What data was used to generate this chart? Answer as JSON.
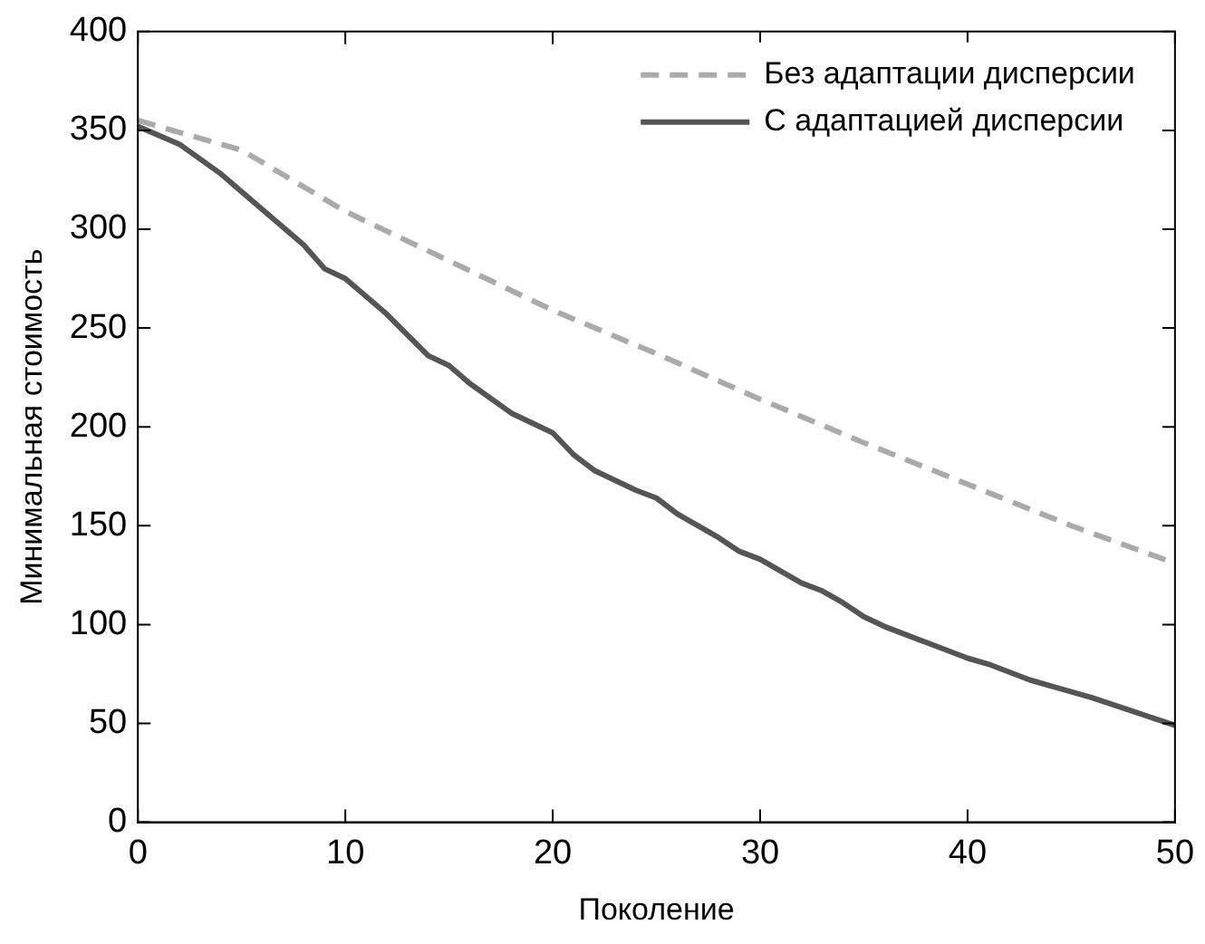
{
  "chart_data": {
    "type": "line",
    "xlabel": "Поколение",
    "ylabel": "Минимальная стоимость",
    "xlim": [
      0,
      50
    ],
    "xticks": [
      0,
      10,
      20,
      30,
      40,
      50
    ],
    "ylim": [
      0,
      400
    ],
    "yticks": [
      0,
      50,
      100,
      150,
      200,
      250,
      300,
      350,
      400
    ],
    "grid": false,
    "legend": "top right",
    "marker": "none",
    "series": [
      {
        "name": "Без адаптации дисперсии",
        "color": "#aaaaaa",
        "line_style": "dashed",
        "x": [
          0,
          5,
          10,
          15,
          20,
          25,
          30,
          35,
          40,
          45,
          50
        ],
        "values": [
          355,
          340,
          309,
          284,
          259,
          237,
          214,
          192,
          171,
          150,
          131
        ]
      },
      {
        "name": "С адаптацией дисперсии",
        "color": "#555555",
        "line_style": "solid",
        "x": [
          0,
          2,
          4,
          6,
          8,
          9,
          10,
          12,
          14,
          15,
          16,
          18,
          20,
          21,
          22,
          24,
          25,
          26,
          28,
          29,
          30,
          32,
          33,
          34,
          35,
          36,
          38,
          40,
          41,
          42,
          43,
          44,
          46,
          48,
          50
        ],
        "values": [
          352,
          343,
          328,
          310,
          292,
          280,
          275,
          257,
          236,
          231,
          222,
          207,
          197,
          186,
          178,
          168,
          164,
          156,
          144,
          137,
          133,
          121,
          117,
          111,
          104,
          99,
          91,
          83,
          80,
          76,
          72,
          69,
          63,
          56,
          49
        ]
      }
    ]
  }
}
